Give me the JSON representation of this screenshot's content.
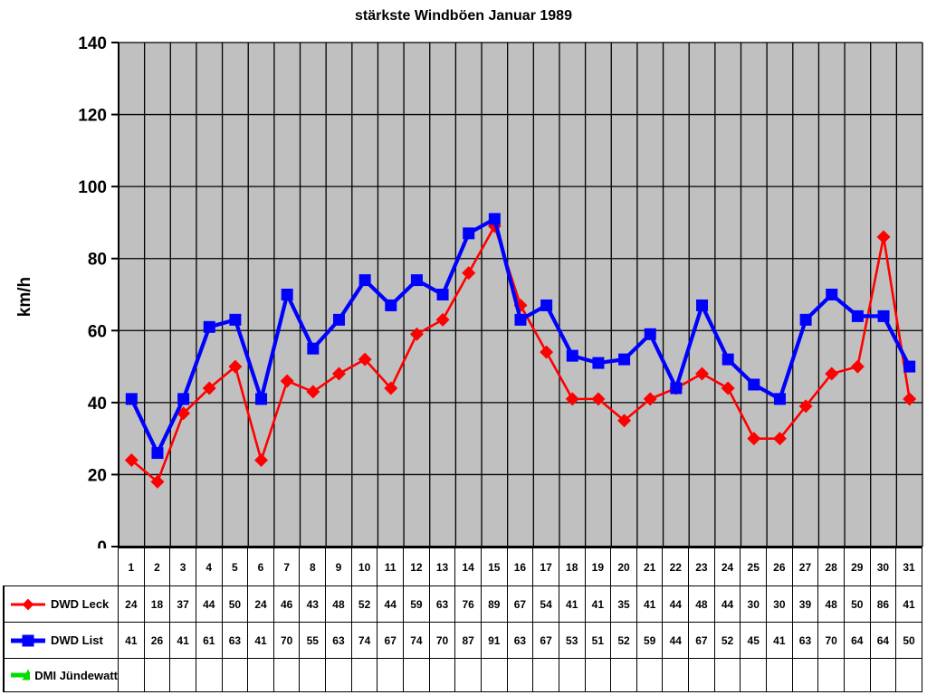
{
  "chart_data": {
    "type": "line",
    "title": "stärkste Windböen Januar 1989",
    "ylabel": "km/h",
    "ylim": [
      0,
      140
    ],
    "ytick_step": 20,
    "yticks": [
      0,
      20,
      40,
      60,
      80,
      100,
      120,
      140
    ],
    "plot_bg_color": "#C0C0C0",
    "grid": true,
    "gridline_color": "#000000",
    "legend_position": "table-left",
    "categories": [
      1,
      2,
      3,
      4,
      5,
      6,
      7,
      8,
      9,
      10,
      11,
      12,
      13,
      14,
      15,
      16,
      17,
      18,
      19,
      20,
      21,
      22,
      23,
      24,
      25,
      26,
      27,
      28,
      29,
      30,
      31
    ],
    "series": [
      {
        "name": "DWD Leck",
        "color": "#FF0000",
        "marker": "diamond",
        "values": [
          24,
          18,
          37,
          44,
          50,
          24,
          46,
          43,
          48,
          52,
          44,
          59,
          63,
          76,
          89,
          67,
          54,
          41,
          41,
          35,
          41,
          44,
          48,
          44,
          30,
          30,
          39,
          48,
          50,
          86,
          41
        ]
      },
      {
        "name": "DWD List",
        "color": "#0000FF",
        "marker": "square",
        "values": [
          41,
          26,
          41,
          61,
          63,
          41,
          70,
          55,
          63,
          74,
          67,
          74,
          70,
          87,
          91,
          63,
          67,
          53,
          51,
          52,
          59,
          44,
          67,
          52,
          45,
          41,
          63,
          70,
          64,
          64,
          50
        ]
      },
      {
        "name": "DMI Jündewatt",
        "color": "#00DD00",
        "marker": "triangle",
        "values": []
      }
    ]
  }
}
